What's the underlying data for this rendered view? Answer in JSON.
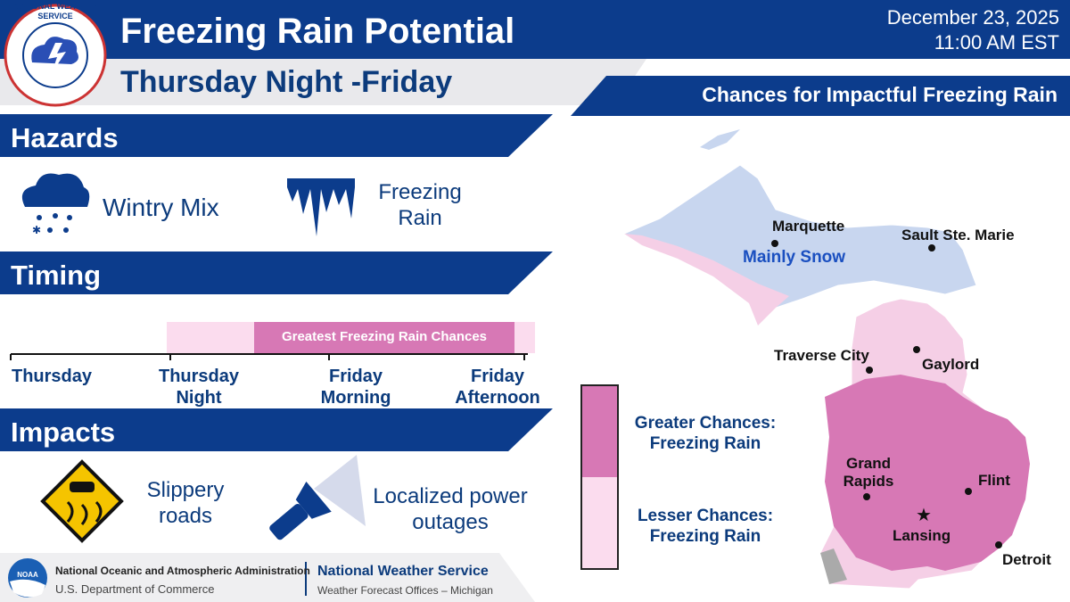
{
  "header": {
    "logo_text": "NATIONAL WEATHER SERVICE",
    "title": "Freezing Rain Potential",
    "subtitle": "Thursday Night -Friday",
    "date": "December 23, 2025",
    "time": "11:00 AM EST"
  },
  "hazards": {
    "heading": "Hazards",
    "items": [
      "Wintry Mix",
      "Freezing Rain"
    ]
  },
  "timing": {
    "heading": "Timing",
    "bar_label": "Greatest Freezing Rain Chances",
    "periods": [
      "Thursday",
      "Thursday Night",
      "Friday Morning",
      "Friday Afternoon"
    ]
  },
  "impacts": {
    "heading": "Impacts",
    "items": [
      "Slippery roads",
      "Localized power outages"
    ]
  },
  "map": {
    "title": "Chances for Impactful Freezing Rain",
    "region_label": "Mainly Snow",
    "cities": [
      "Marquette",
      "Sault Ste. Marie",
      "Traverse City",
      "Gaylord",
      "Grand Rapids",
      "Flint",
      "Lansing",
      "Detroit"
    ],
    "legend": [
      "Greater Chances: Freezing Rain",
      "Lesser Chances: Freezing Rain"
    ]
  },
  "footer": {
    "noaa_logo": "NOAA",
    "noaa_name": "National Oceanic and Atmospheric Administration",
    "noaa_dept": "U.S. Department of Commerce",
    "nws_name": "National Weather Service",
    "nws_offices": "Weather Forecast Offices – Michigan"
  }
}
